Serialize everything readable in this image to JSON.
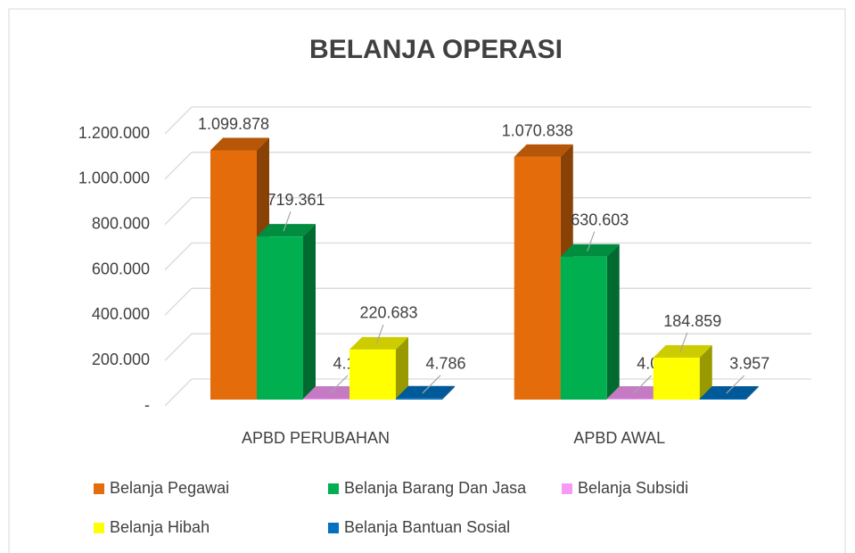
{
  "chart_data": {
    "type": "bar3d",
    "title": "BELANJA OPERASI",
    "categories": [
      "APBD PERUBAHAN",
      "APBD AWAL"
    ],
    "series": [
      {
        "name": "Belanja Pegawai",
        "color": "#e46c0a",
        "values": [
          1099878,
          1070838
        ],
        "value_labels": [
          "1.099.878",
          "1.070.838"
        ]
      },
      {
        "name": "Belanja Barang Dan Jasa",
        "color": "#00b050",
        "values": [
          719361,
          630603
        ],
        "value_labels": [
          "719.361",
          "630.603"
        ]
      },
      {
        "name": "Belanja Subsidi",
        "color": "#f59af5",
        "values": [
          4146,
          4000
        ],
        "value_labels": [
          "4.146",
          "4.000"
        ]
      },
      {
        "name": "Belanja Hibah",
        "color": "#ffff00",
        "values": [
          220683,
          184859
        ],
        "value_labels": [
          "220.683",
          "184.859"
        ]
      },
      {
        "name": "Belanja Bantuan Sosial",
        "color": "#0070c0",
        "values": [
          4786,
          3957
        ],
        "value_labels": [
          "4.786",
          "3.957"
        ]
      }
    ],
    "ylim": [
      0,
      1200000
    ],
    "yticks": [
      {
        "value": 0,
        "label": "-"
      },
      {
        "value": 200000,
        "label": "200.000"
      },
      {
        "value": 400000,
        "label": "400.000"
      },
      {
        "value": 600000,
        "label": "600.000"
      },
      {
        "value": 800000,
        "label": "800.000"
      },
      {
        "value": 1000000,
        "label": "1.000.000"
      },
      {
        "value": 1200000,
        "label": "1.200.000"
      }
    ],
    "grid": true,
    "legend": "bottom"
  }
}
